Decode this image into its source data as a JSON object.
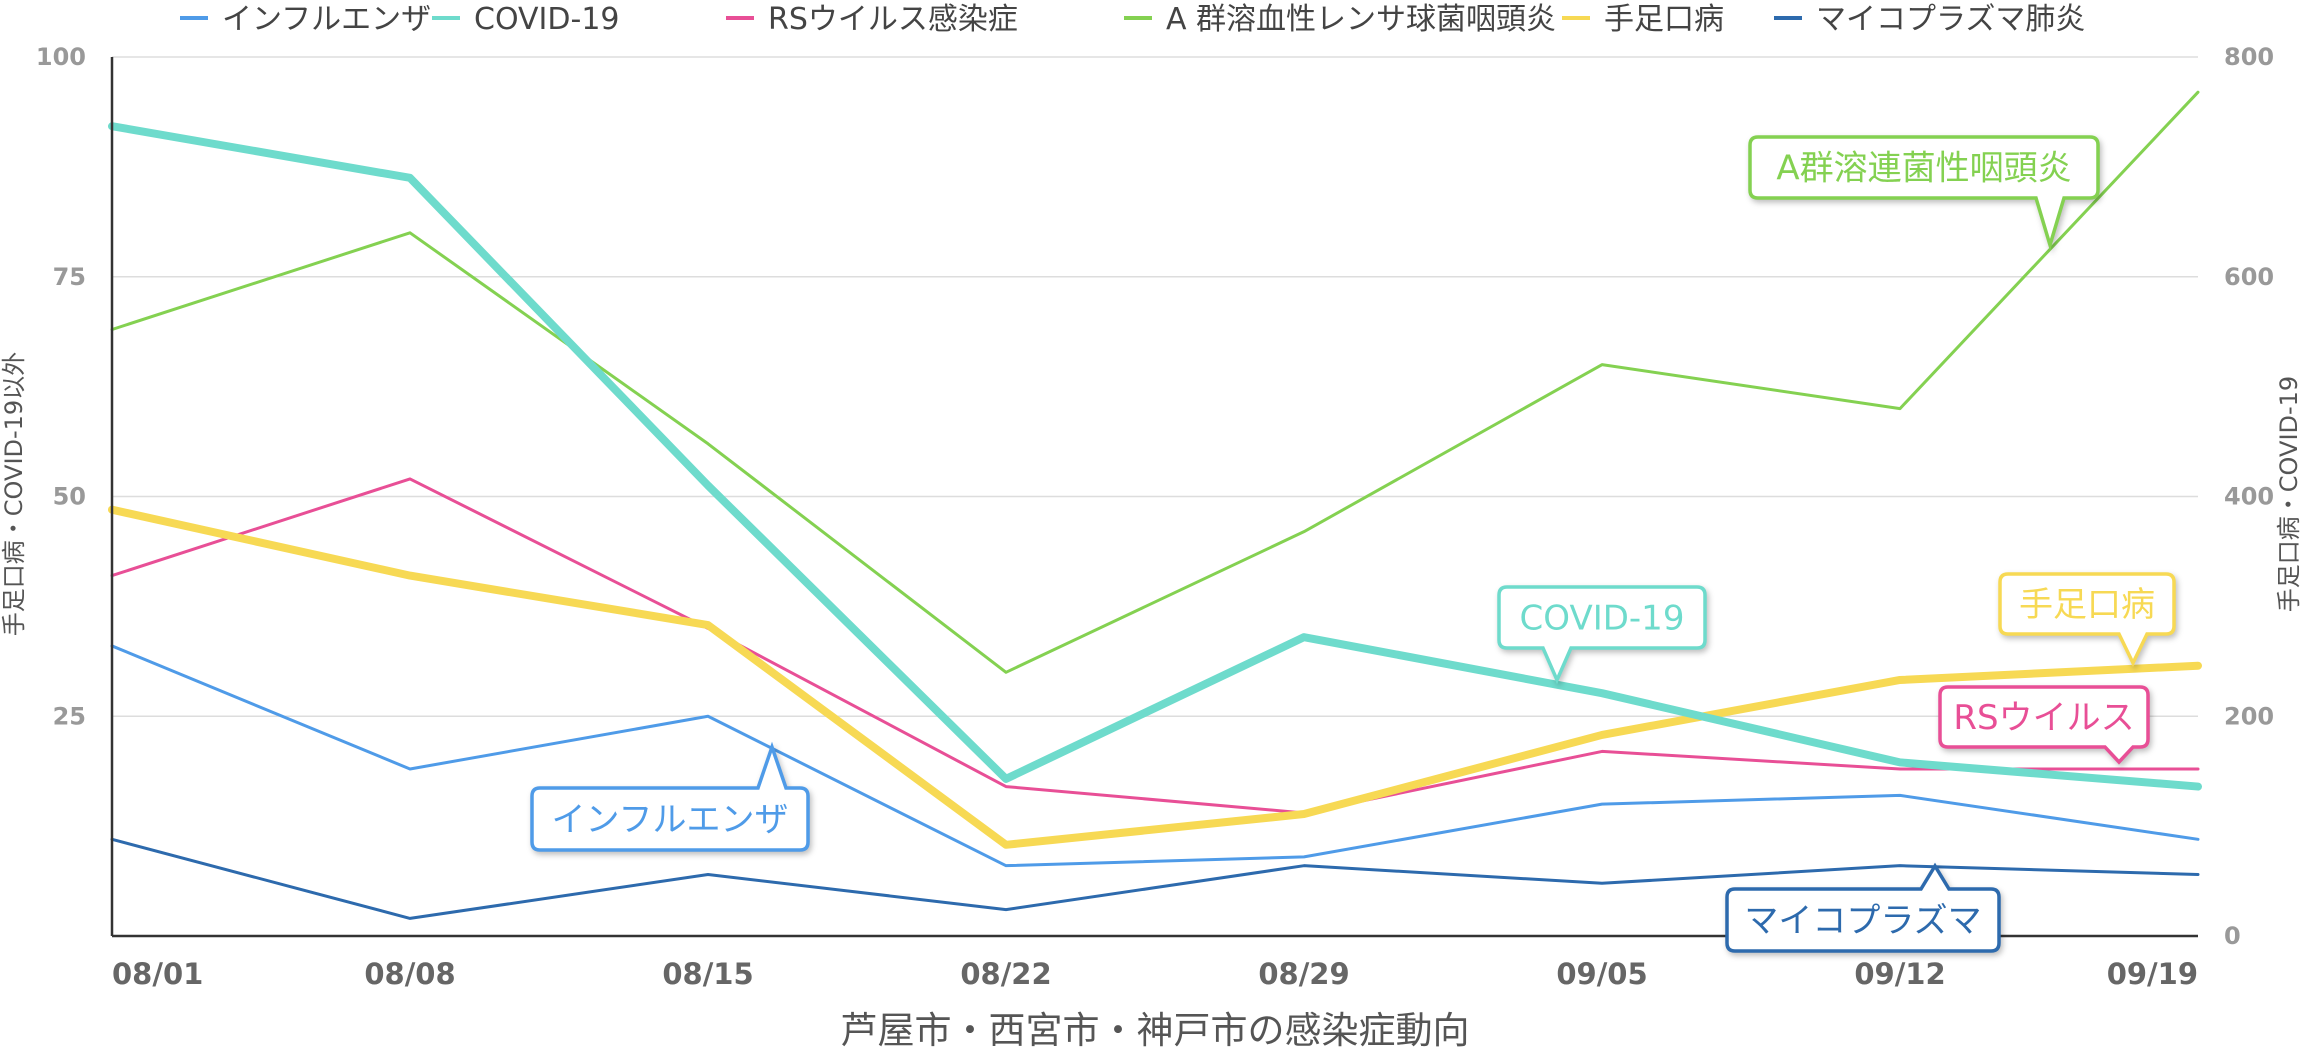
{
  "chart_data": {
    "type": "line",
    "title": "芦屋市・西宮市・神戸市の感染症動向",
    "categories": [
      "08/01",
      "08/08",
      "08/15",
      "08/22",
      "08/29",
      "09/05",
      "09/12",
      "09/19"
    ],
    "y_left": {
      "label": "手足口病・COVID-19以外",
      "range": [
        0,
        100
      ],
      "ticks": [
        "100",
        "75",
        "50",
        "25"
      ]
    },
    "y_right": {
      "label": "手足口病・COVID-19",
      "range": [
        0,
        800
      ],
      "ticks": [
        "800",
        "600",
        "400",
        "200",
        "0"
      ]
    },
    "grid": true,
    "legend_position": "top",
    "series": [
      {
        "name": "インフルエンザ",
        "axis": "left",
        "color": "#4f9be8",
        "width": 3,
        "values": [
          33,
          19,
          25,
          8,
          9,
          15,
          16,
          11
        ]
      },
      {
        "name": "COVID-19",
        "axis": "right",
        "color": "#6edbcc",
        "width": 8,
        "values": [
          737,
          690,
          410,
          143,
          272,
          221,
          158,
          136
        ]
      },
      {
        "name": "RSウイルス感染症",
        "axis": "left",
        "color": "#e84f96",
        "width": 3,
        "values": [
          41,
          52,
          35,
          17,
          14,
          21,
          19,
          19
        ]
      },
      {
        "name": "A 群溶血性レンサ球菌咽頭炎",
        "axis": "left",
        "color": "#84d151",
        "width": 3,
        "values": [
          69,
          80,
          56,
          30,
          46,
          65,
          60,
          96
        ]
      },
      {
        "name": "手足口病",
        "axis": "right",
        "color": "#f7d954",
        "width": 8,
        "values": [
          388,
          328,
          283,
          83,
          111,
          183,
          233,
          246
        ]
      },
      {
        "name": "マイコプラズマ肺炎",
        "axis": "left",
        "color": "#2d6aad",
        "width": 3,
        "values": [
          11,
          2,
          7,
          3,
          8,
          6,
          8,
          7
        ]
      }
    ],
    "callouts": [
      {
        "text": "A群溶連菌性咽頭炎",
        "color": "#84d151"
      },
      {
        "text": "COVID-19",
        "color": "#6edbcc"
      },
      {
        "text": "手足口病",
        "color": "#f7d954"
      },
      {
        "text": "RSウイルス",
        "color": "#e84f96"
      },
      {
        "text": "インフルエンザ",
        "color": "#4f9be8"
      },
      {
        "text": "マイコプラズマ",
        "color": "#2d6aad"
      }
    ]
  }
}
